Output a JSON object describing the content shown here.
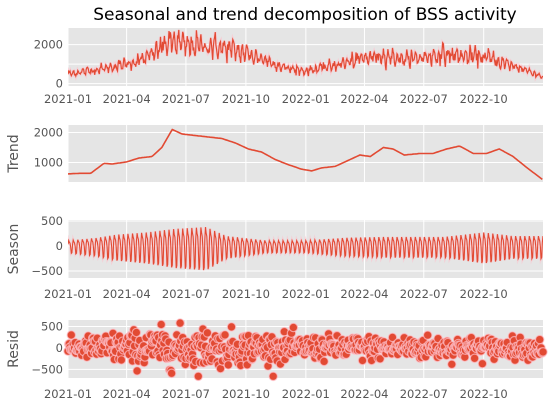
{
  "chart_data": {
    "type": "line",
    "title": "Seasonal and trend decomposition of BSS activity",
    "x_start": "2021-01-01",
    "x_end": "2022-12-31",
    "x_tick_labels": [
      "2021-01",
      "2021-04",
      "2021-07",
      "2021-10",
      "2022-01",
      "2022-04",
      "2022-07",
      "2022-10"
    ],
    "x_ticks": [
      "2021-01-01",
      "2021-04-01",
      "2021-07-01",
      "2021-10-01",
      "2022-01-01",
      "2022-04-01",
      "2022-07-01",
      "2022-10-01"
    ],
    "grid": true,
    "colors": {
      "series": "#e24a33",
      "background": "#e5e5e5",
      "grid": "#ffffff",
      "resid_marker_edge": "#ffc0cb"
    },
    "panels": [
      {
        "key": "observed",
        "ylabel": "",
        "ylim": [
          -120,
          2850
        ],
        "yticks": [
          0,
          1000,
          2000
        ],
        "ytick_labels": [
          "0",
          "",
          "2000"
        ],
        "style": "line",
        "anchors": [
          [
            "2021-01-01",
            500
          ],
          [
            "2021-02-01",
            650
          ],
          [
            "2021-03-01",
            800
          ],
          [
            "2021-04-01",
            1000
          ],
          [
            "2021-05-01",
            1300
          ],
          [
            "2021-06-01",
            2050
          ],
          [
            "2021-06-15",
            2150
          ],
          [
            "2021-07-01",
            1950
          ],
          [
            "2021-08-01",
            1950
          ],
          [
            "2021-09-01",
            1800
          ],
          [
            "2021-10-01",
            1550
          ],
          [
            "2021-11-01",
            1200
          ],
          [
            "2021-12-01",
            800
          ],
          [
            "2022-01-01",
            650
          ],
          [
            "2022-02-01",
            850
          ],
          [
            "2022-03-01",
            1050
          ],
          [
            "2022-04-01",
            1300
          ],
          [
            "2022-05-01",
            1450
          ],
          [
            "2022-06-01",
            1250
          ],
          [
            "2022-07-01",
            1350
          ],
          [
            "2022-08-01",
            1500
          ],
          [
            "2022-09-01",
            1400
          ],
          [
            "2022-10-01",
            1400
          ],
          [
            "2022-11-01",
            1050
          ],
          [
            "2022-12-01",
            750
          ],
          [
            "2022-12-31",
            350
          ]
        ]
      },
      {
        "key": "trend",
        "ylabel": "Trend",
        "ylim": [
          350,
          2250
        ],
        "yticks": [
          1000,
          2000
        ],
        "ytick_labels": [
          "1000",
          "2000"
        ],
        "style": "line",
        "anchors": [
          [
            "2021-01-01",
            620
          ],
          [
            "2021-01-20",
            640
          ],
          [
            "2021-02-05",
            640
          ],
          [
            "2021-02-25",
            970
          ],
          [
            "2021-03-10",
            950
          ],
          [
            "2021-04-01",
            1020
          ],
          [
            "2021-04-20",
            1150
          ],
          [
            "2021-05-10",
            1200
          ],
          [
            "2021-05-25",
            1500
          ],
          [
            "2021-06-10",
            2100
          ],
          [
            "2021-06-25",
            1950
          ],
          [
            "2021-07-15",
            1900
          ],
          [
            "2021-08-05",
            1850
          ],
          [
            "2021-08-25",
            1800
          ],
          [
            "2021-09-15",
            1650
          ],
          [
            "2021-10-05",
            1450
          ],
          [
            "2021-10-25",
            1350
          ],
          [
            "2021-11-15",
            1100
          ],
          [
            "2021-12-05",
            930
          ],
          [
            "2021-12-25",
            780
          ],
          [
            "2022-01-10",
            720
          ],
          [
            "2022-01-25",
            820
          ],
          [
            "2022-02-15",
            870
          ],
          [
            "2022-03-05",
            1050
          ],
          [
            "2022-03-25",
            1250
          ],
          [
            "2022-04-10",
            1200
          ],
          [
            "2022-04-30",
            1500
          ],
          [
            "2022-05-15",
            1450
          ],
          [
            "2022-06-01",
            1250
          ],
          [
            "2022-06-25",
            1300
          ],
          [
            "2022-07-15",
            1300
          ],
          [
            "2022-08-05",
            1450
          ],
          [
            "2022-08-25",
            1550
          ],
          [
            "2022-09-15",
            1300
          ],
          [
            "2022-10-05",
            1300
          ],
          [
            "2022-10-25",
            1450
          ],
          [
            "2022-11-15",
            1200
          ],
          [
            "2022-12-05",
            850
          ],
          [
            "2022-12-31",
            420
          ]
        ]
      },
      {
        "key": "season",
        "ylabel": "Season",
        "ylim": [
          -640,
          520
        ],
        "yticks": [
          -500,
          0,
          500
        ],
        "ytick_labels": [
          "−500",
          "0",
          "500"
        ],
        "style": "line",
        "period_days": 7,
        "amplitude_anchors": [
          [
            "2021-01-01",
            120
          ],
          [
            "2021-02-15",
            180
          ],
          [
            "2021-03-15",
            250
          ],
          [
            "2021-05-01",
            300
          ],
          [
            "2021-06-15",
            380
          ],
          [
            "2021-08-01",
            420
          ],
          [
            "2021-09-01",
            220
          ],
          [
            "2021-11-01",
            120
          ],
          [
            "2022-01-01",
            120
          ],
          [
            "2022-03-01",
            180
          ],
          [
            "2022-05-01",
            200
          ],
          [
            "2022-08-01",
            200
          ],
          [
            "2022-10-01",
            300
          ],
          [
            "2022-11-15",
            220
          ],
          [
            "2022-12-31",
            220
          ]
        ]
      },
      {
        "key": "resid",
        "ylabel": "Resid",
        "ylim": [
          -700,
          650
        ],
        "yticks": [
          -500,
          0,
          500
        ],
        "ytick_labels": [
          "−500",
          "0",
          "500"
        ],
        "style": "scatter",
        "spread_anchors": [
          [
            "2021-01-01",
            120
          ],
          [
            "2021-03-01",
            250
          ],
          [
            "2021-05-01",
            300
          ],
          [
            "2021-07-01",
            350
          ],
          [
            "2021-09-01",
            300
          ],
          [
            "2021-11-01",
            250
          ],
          [
            "2022-01-01",
            200
          ],
          [
            "2022-04-01",
            200
          ],
          [
            "2022-07-01",
            200
          ],
          [
            "2022-10-01",
            180
          ],
          [
            "2022-12-31",
            150
          ]
        ]
      }
    ]
  }
}
